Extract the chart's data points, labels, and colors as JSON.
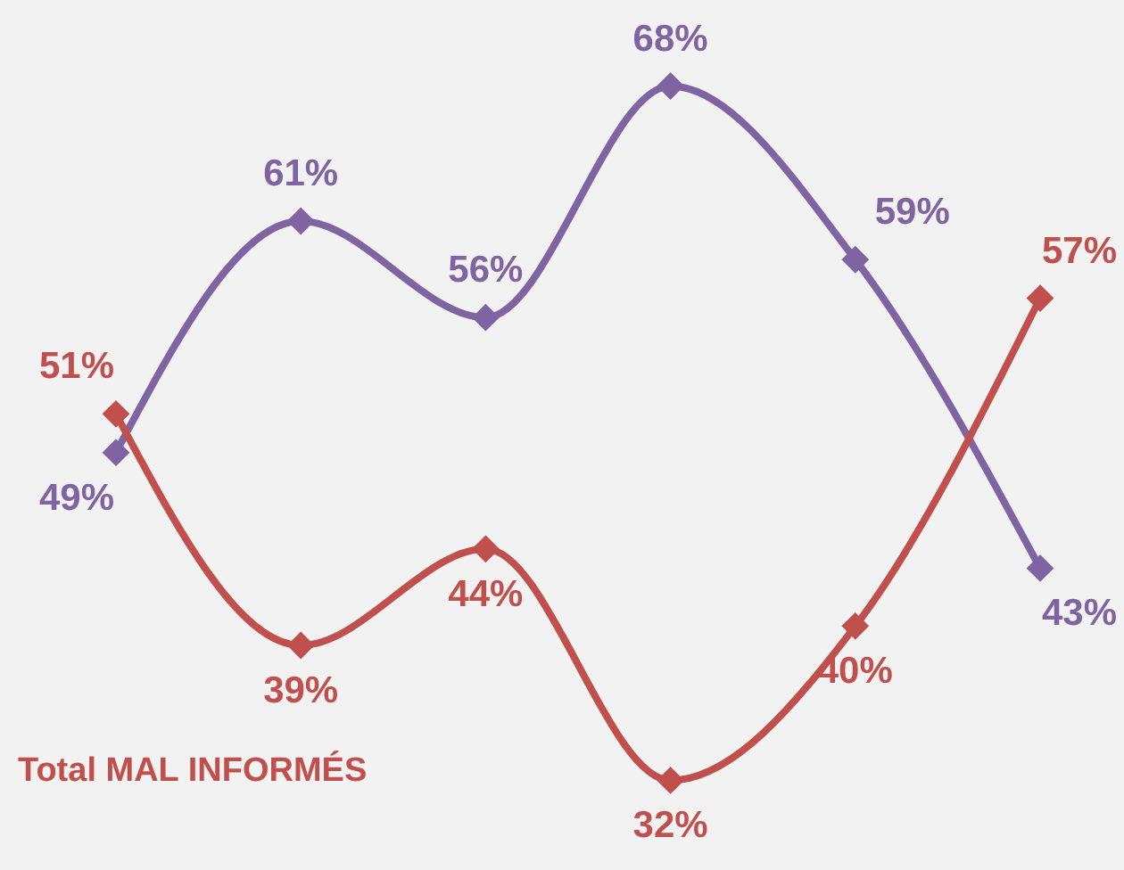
{
  "chart_data": {
    "type": "line",
    "categories": [
      null,
      null,
      null,
      null,
      null,
      null
    ],
    "series": [
      {
        "color": "#8064a2",
        "values": [
          49,
          61,
          56,
          68,
          59,
          43
        ],
        "value_labels": [
          "49%",
          "61%",
          "56%",
          "68%",
          "59%",
          "43%"
        ]
      },
      {
        "name": "Total MAL INFORMÉS",
        "color": "#c0504d",
        "values": [
          51,
          39,
          44,
          32,
          40,
          57
        ],
        "value_labels": [
          "51%",
          "39%",
          "44%",
          "32%",
          "40%",
          "57%"
        ]
      }
    ],
    "marker": "diamond",
    "line_style": "solid"
  }
}
